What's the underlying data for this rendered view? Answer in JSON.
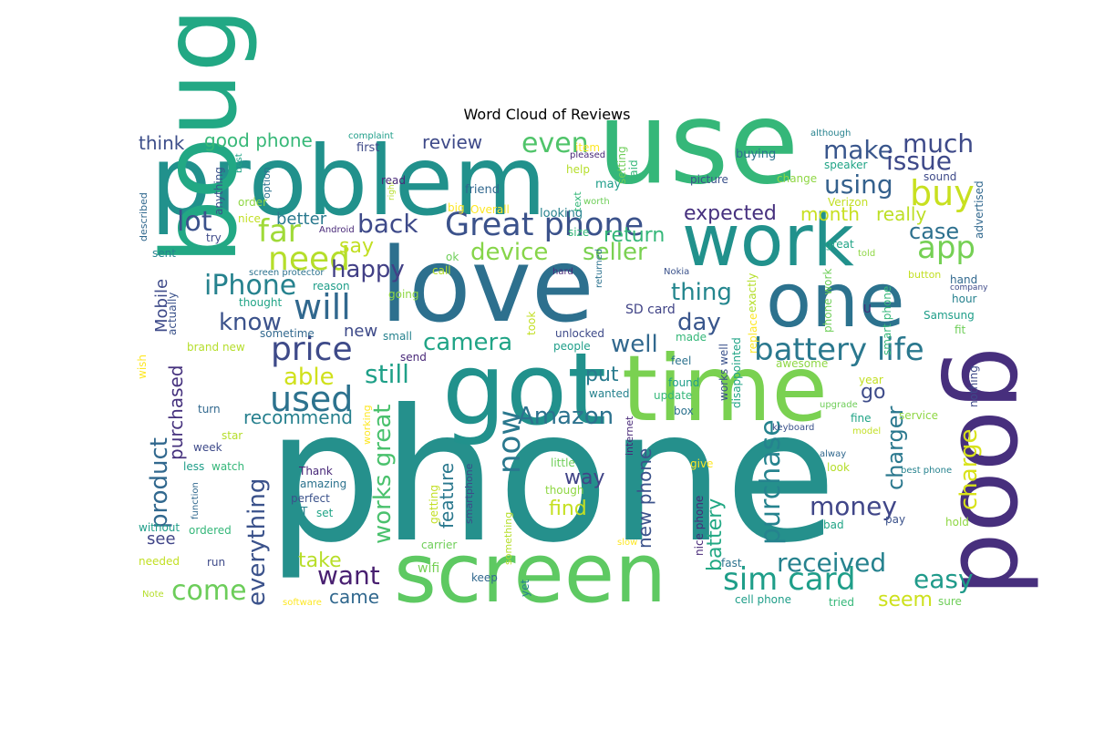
{
  "chart_data": {
    "type": "wordcloud",
    "title": "Word Cloud of Reviews",
    "background": "#ffffff",
    "colormap": "viridis",
    "words": [
      {
        "text": "phone",
        "color": "#25908c"
      },
      {
        "text": "problem",
        "color": "#21918c"
      },
      {
        "text": "use",
        "color": "#35b779"
      },
      {
        "text": "work",
        "color": "#21918c"
      },
      {
        "text": "love",
        "color": "#2d708e"
      },
      {
        "text": "one",
        "color": "#2c728e"
      },
      {
        "text": "got",
        "color": "#21918c"
      },
      {
        "text": "time",
        "color": "#7ad151"
      },
      {
        "text": "good",
        "color": "#472f7d"
      },
      {
        "text": "bought",
        "color": "#22a884"
      },
      {
        "text": "screen",
        "color": "#5ec962"
      },
      {
        "text": "Great phone",
        "color": "#3b528b"
      },
      {
        "text": "price",
        "color": "#3e4a89"
      },
      {
        "text": "will",
        "color": "#31688e"
      },
      {
        "text": "need",
        "color": "#b5de2b"
      },
      {
        "text": "used",
        "color": "#2c728e"
      },
      {
        "text": "battery life",
        "color": "#2a788e"
      },
      {
        "text": "sim card",
        "color": "#1f9e89"
      },
      {
        "text": "iPhone",
        "color": "#26828e"
      },
      {
        "text": "buy",
        "color": "#c8e020"
      },
      {
        "text": "app",
        "color": "#75d054"
      },
      {
        "text": "far",
        "color": "#a0da39"
      },
      {
        "text": "lot",
        "color": "#3b528b"
      },
      {
        "text": "even",
        "color": "#50c46a"
      },
      {
        "text": "make",
        "color": "#39568c"
      },
      {
        "text": "much",
        "color": "#3e4a89"
      },
      {
        "text": "issue",
        "color": "#3e4989"
      },
      {
        "text": "using",
        "color": "#34618d"
      },
      {
        "text": "back",
        "color": "#3e4a89"
      },
      {
        "text": "happy",
        "color": "#424086"
      },
      {
        "text": "know",
        "color": "#3b528b"
      },
      {
        "text": "still",
        "color": "#1fa088"
      },
      {
        "text": "able",
        "color": "#d0e11c"
      },
      {
        "text": "camera",
        "color": "#20a486"
      },
      {
        "text": "Amazon",
        "color": "#2c728e"
      },
      {
        "text": "now",
        "color": "#2a788e"
      },
      {
        "text": "device",
        "color": "#86d549"
      },
      {
        "text": "seller",
        "color": "#7ad151"
      },
      {
        "text": "return",
        "color": "#35b779"
      },
      {
        "text": "expected",
        "color": "#46307e"
      },
      {
        "text": "month",
        "color": "#c8e020"
      },
      {
        "text": "really",
        "color": "#bddf26"
      },
      {
        "text": "case",
        "color": "#2d708e"
      },
      {
        "text": "thing",
        "color": "#24868e"
      },
      {
        "text": "day",
        "color": "#39568c"
      },
      {
        "text": "well",
        "color": "#31688e"
      },
      {
        "text": "purchase",
        "color": "#25838e"
      },
      {
        "text": "charger",
        "color": "#2a788e"
      },
      {
        "text": "charge",
        "color": "#d8e219"
      },
      {
        "text": "go",
        "color": "#3e4c8a"
      },
      {
        "text": "money",
        "color": "#404688"
      },
      {
        "text": "received",
        "color": "#26828e"
      },
      {
        "text": "easy",
        "color": "#1f9a8a"
      },
      {
        "text": "seem",
        "color": "#cde11d"
      },
      {
        "text": "come",
        "color": "#6ccd5a"
      },
      {
        "text": "want",
        "color": "#481f70"
      },
      {
        "text": "take",
        "color": "#b8de29"
      },
      {
        "text": "came",
        "color": "#31688e"
      },
      {
        "text": "everything",
        "color": "#3b528b"
      },
      {
        "text": "works great",
        "color": "#4ac16d"
      },
      {
        "text": "product",
        "color": "#31688e"
      },
      {
        "text": "purchased",
        "color": "#46327e"
      },
      {
        "text": "recommend",
        "color": "#27808e"
      },
      {
        "text": "better",
        "color": "#29798e"
      },
      {
        "text": "say",
        "color": "#c2df23"
      },
      {
        "text": "good phone",
        "color": "#37b878"
      },
      {
        "text": "think",
        "color": "#3d4e8a"
      },
      {
        "text": "review",
        "color": "#3e4a89"
      },
      {
        "text": "new phone",
        "color": "#3b528b"
      },
      {
        "text": "battery",
        "color": "#22a884"
      },
      {
        "text": "feature",
        "color": "#2a788e"
      },
      {
        "text": "way",
        "color": "#414487"
      },
      {
        "text": "find",
        "color": "#c5e021"
      },
      {
        "text": "put",
        "color": "#297b8e"
      },
      {
        "text": "Mobile",
        "color": "#3e4a89"
      },
      {
        "text": "new",
        "color": "#3e4a89"
      },
      {
        "text": "SD card",
        "color": "#414487"
      },
      {
        "text": "see",
        "color": "#404588"
      },
      {
        "text": "wifi",
        "color": "#75d054"
      }
    ],
    "small_words": [
      "first",
      "friend",
      "looking",
      "may",
      "said",
      "setting",
      "help",
      "item",
      "pleased",
      "buying",
      "picture",
      "speaker",
      "change",
      "Verizon",
      "sound",
      "advertised",
      "although",
      "complaint",
      "text",
      "worth",
      "right",
      "big",
      "read",
      "option",
      "anything",
      "best",
      "order",
      "nice",
      "try",
      "described",
      "sent",
      "reason",
      "size",
      "ok",
      "call",
      "Overall",
      "hard",
      "returned",
      "Nokia",
      "great",
      "told",
      "button",
      "company",
      "hand",
      "hour",
      "Samsung",
      "smart phone",
      "phone work",
      "exactly",
      "replace",
      "U",
      "screen protector",
      "actually",
      "thought",
      "going",
      "took",
      "unlocked",
      "sometime",
      "small",
      "people",
      "made",
      "fit",
      "brand new",
      "wish",
      "send",
      "feel",
      "works well",
      "disappointed",
      "awesome",
      "year",
      "nothing",
      "turn",
      "wanted",
      "found",
      "update",
      "upgrade",
      "star",
      "working",
      "internet",
      "box",
      "keyboard",
      "fine",
      "service",
      "model",
      "week",
      "alway",
      "best phone",
      "less",
      "watch",
      "little",
      "look",
      "give",
      "Thank",
      "amazing",
      "perfect",
      "set",
      "though",
      "getting",
      "smartphone",
      "function",
      "T",
      "without",
      "ordered",
      "carrier",
      "something",
      "slow",
      "nice phone",
      "fast",
      "pay",
      "bad",
      "hold",
      "needed",
      "run",
      "keep",
      "yet",
      "cell phone",
      "tried",
      "sure",
      "Note",
      "software",
      "Android"
    ]
  }
}
